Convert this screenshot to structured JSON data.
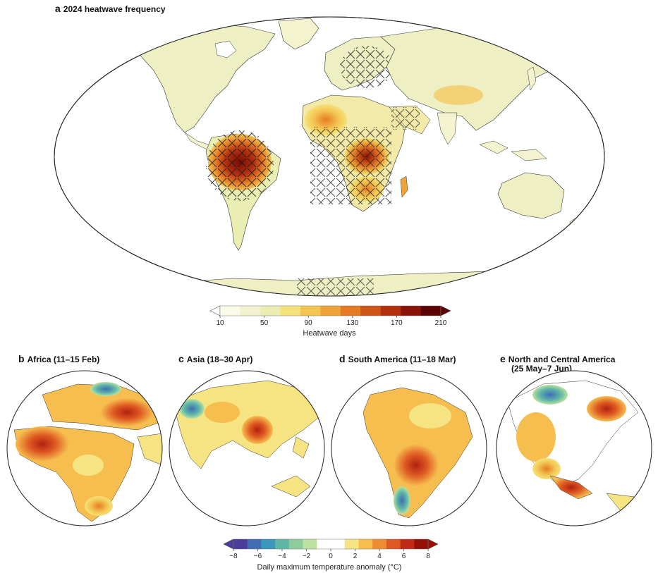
{
  "panel_a": {
    "letter": "a",
    "title": "2024 heatwave frequency"
  },
  "panel_b": {
    "letter": "b",
    "title": "Africa (11–15 Feb)"
  },
  "panel_c": {
    "letter": "c",
    "title": "Asia (18–30 Apr)"
  },
  "panel_d": {
    "letter": "d",
    "title": "South America (11–18 Mar)"
  },
  "panel_e": {
    "letter": "e",
    "title": "North and Central America",
    "subtitle": "(25 May–7 Jun)"
  },
  "colorbar_top": {
    "label": "Heatwave days",
    "ticks": [
      "10",
      "50",
      "90",
      "130",
      "170",
      "210"
    ],
    "colors": [
      "#fafbe9",
      "#f3f3cf",
      "#eaeeb3",
      "#f5e27a",
      "#f3c552",
      "#efa43a",
      "#e67b24",
      "#cf5418",
      "#b3300f",
      "#8a1208",
      "#5c0303"
    ]
  },
  "colorbar_bottom": {
    "label": "Daily maximum temperature anomaly (°C)",
    "ticks": [
      "−8",
      "−6",
      "−4",
      "−2",
      "0",
      "2",
      "4",
      "6",
      "8"
    ],
    "colors": [
      "#4a3d9c",
      "#3f6db4",
      "#3b98bd",
      "#5fb7a8",
      "#8ccd9d",
      "#bde1a1",
      "#ffffff",
      "#ffffff",
      "#f6e382",
      "#f6be4f",
      "#ee8c34",
      "#df5a22",
      "#c12a16",
      "#961008"
    ]
  }
}
